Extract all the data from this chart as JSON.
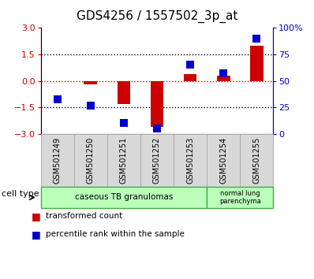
{
  "title": "GDS4256 / 1557502_3p_at",
  "samples": [
    "GSM501249",
    "GSM501250",
    "GSM501251",
    "GSM501252",
    "GSM501253",
    "GSM501254",
    "GSM501255"
  ],
  "red_values": [
    0.0,
    -0.2,
    -1.3,
    -2.6,
    0.4,
    0.3,
    2.0
  ],
  "blue_values": [
    33,
    27,
    10,
    5,
    65,
    57,
    90
  ],
  "left_ylim": [
    -3,
    3
  ],
  "right_ylim": [
    0,
    100
  ],
  "left_yticks": [
    -3,
    -1.5,
    0,
    1.5,
    3
  ],
  "right_yticks": [
    0,
    25,
    50,
    75,
    100
  ],
  "right_yticklabels": [
    "0",
    "25",
    "50",
    "75",
    "100%"
  ],
  "dotted_lines_black": [
    -1.5,
    1.5
  ],
  "dotted_line_red": 0,
  "red_color": "#cc0000",
  "blue_color": "#0000cc",
  "group1_label": "caseous TB granulomas",
  "group1_count": 5,
  "group2_label": "normal lung\nparenchyma",
  "group2_count": 2,
  "cell_type_label": "cell type",
  "group_color": "#bbffbb",
  "group_edge_color": "#44aa44",
  "legend_red_label": "transformed count",
  "legend_blue_label": "percentile rank within the sample",
  "bar_width": 0.4,
  "blue_marker_size": 7,
  "box_bg": "#d8d8d8",
  "box_edge": "#aaaaaa",
  "title_fontsize": 11,
  "tick_fontsize": 8,
  "sample_fontsize": 7
}
